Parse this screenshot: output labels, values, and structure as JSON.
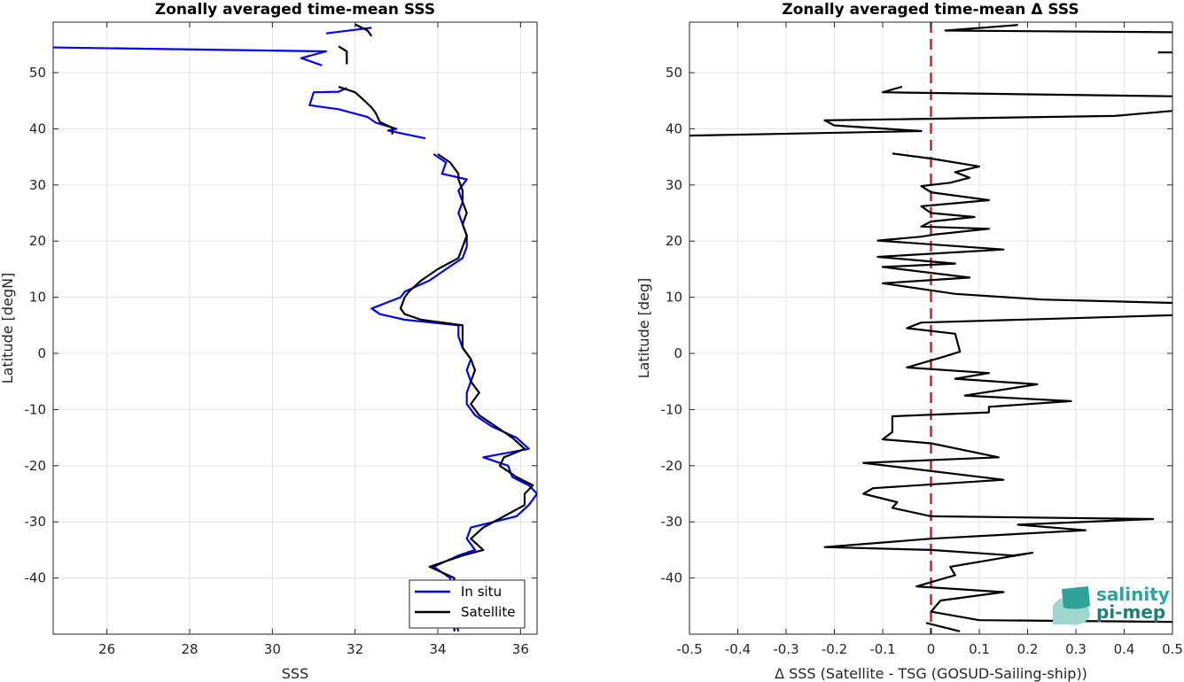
{
  "chart_data": [
    {
      "type": "line",
      "title": "Zonally averaged time-mean SSS",
      "xlabel": "SSS",
      "ylabel": "Latitude [degN]",
      "xlim": [
        24.7,
        36.4
      ],
      "ylim": [
        -50,
        59
      ],
      "xticks": [
        26,
        28,
        30,
        32,
        34,
        36
      ],
      "yticks": [
        -40,
        -30,
        -20,
        -10,
        0,
        10,
        20,
        30,
        40,
        50
      ],
      "grid": true,
      "legend": "bottom-right",
      "series": [
        {
          "name": "In situ",
          "color": "#0000ff",
          "segments": [
            [
              [
                32.4,
                58
              ],
              [
                31.3,
                57
              ]
            ],
            [
              [
                24.6,
                54.5
              ],
              [
                31.3,
                53.8
              ],
              [
                30.7,
                52.6
              ],
              [
                31.2,
                51.3
              ]
            ],
            [
              [
                31.8,
                47.3
              ],
              [
                31.6,
                46.6
              ],
              [
                31.0,
                46.5
              ],
              [
                30.9,
                44.2
              ],
              [
                31.6,
                43.5
              ],
              [
                32.3,
                42.1
              ],
              [
                32.5,
                41.1
              ],
              [
                33.0,
                40.0
              ],
              [
                32.8,
                39.7
              ],
              [
                33.7,
                38.3
              ]
            ]
          ]
        },
        {
          "name": "Satellite",
          "color": "#000000",
          "segments": [
            [
              [
                32.0,
                58.6
              ],
              [
                32.3,
                57.5
              ],
              [
                32.4,
                56.5
              ]
            ],
            [
              [
                31.6,
                54.7
              ],
              [
                31.8,
                53.8
              ],
              [
                31.8,
                51.5
              ]
            ],
            [
              [
                31.6,
                47.5
              ],
              [
                32.0,
                46.5
              ],
              [
                32.2,
                45.2
              ],
              [
                32.4,
                43.8
              ],
              [
                32.5,
                42.8
              ],
              [
                32.6,
                41.2
              ],
              [
                32.9,
                40.2
              ],
              [
                32.9,
                39.0
              ]
            ]
          ]
        }
      ],
      "series_south": {
        "lat": [
          35.5,
          34,
          32,
          31,
          29,
          27,
          25,
          23,
          21,
          19,
          17,
          15,
          13,
          11,
          10,
          8,
          7,
          6,
          5,
          3,
          1,
          -1,
          -3,
          -5,
          -7,
          -9,
          -11,
          -13,
          -15,
          -17,
          -18.5,
          -20,
          -22,
          -23.5,
          -25,
          -27,
          -29,
          -31,
          -33,
          -35,
          -36,
          -38,
          -40,
          -43,
          -45,
          -47,
          -49.5
        ],
        "in_situ": [
          33.9,
          34.2,
          34.1,
          34.7,
          34.5,
          34.6,
          34.5,
          34.6,
          34.7,
          34.7,
          34.6,
          34.2,
          33.8,
          33.2,
          33.1,
          32.4,
          32.6,
          33.2,
          34.5,
          34.5,
          34.6,
          34.8,
          34.7,
          34.8,
          34.7,
          34.7,
          34.9,
          35.3,
          35.9,
          36.2,
          35.1,
          35.7,
          35.8,
          36.2,
          36.4,
          36.2,
          35.9,
          34.8,
          34.7,
          34.9,
          34.5,
          33.9,
          34.3,
          34.3,
          34.4,
          34.4,
          34.5
        ],
        "satellite": [
          34.0,
          34.3,
          34.5,
          34.5,
          34.6,
          34.6,
          34.7,
          34.6,
          34.7,
          34.6,
          34.5,
          34.0,
          33.6,
          33.3,
          33.2,
          33.1,
          33.2,
          33.6,
          34.6,
          34.6,
          34.6,
          34.8,
          34.9,
          34.8,
          35.0,
          34.8,
          35.0,
          35.4,
          35.8,
          36.1,
          35.6,
          35.5,
          35.9,
          36.3,
          36.1,
          36.1,
          35.6,
          35.1,
          34.8,
          35.1,
          34.6,
          33.8,
          34.4,
          34.3,
          34.3,
          34.4,
          34.4
        ]
      }
    },
    {
      "type": "line",
      "title": "Zonally averaged time-mean Δ SSS",
      "xlabel": "Δ SSS (Satellite - TSG (GOSUD-Sailing-ship))",
      "ylabel": "Latitude [deg]",
      "xlim": [
        -0.5,
        0.5
      ],
      "ylim": [
        -50,
        59
      ],
      "xticks": [
        -0.5,
        -0.4,
        -0.3,
        -0.2,
        -0.1,
        0,
        0.1,
        0.2,
        0.3,
        0.4,
        0.5
      ],
      "yticks": [
        -40,
        -30,
        -20,
        -10,
        0,
        10,
        20,
        30,
        40,
        50
      ],
      "grid": true,
      "reference_line": {
        "x": 0,
        "color": "#e31a1c",
        "style": "dashed"
      },
      "series": [
        {
          "name": "",
          "color": "#000000",
          "segments": [
            [
              [
                0.18,
                58.5
              ],
              [
                0.03,
                57.5
              ],
              [
                0.5,
                57.2
              ]
            ],
            [
              [
                0.47,
                53.6
              ],
              [
                0.5,
                53.6
              ]
            ],
            [
              [
                -0.06,
                47.5
              ],
              [
                -0.1,
                46.5
              ],
              [
                0.5,
                45.8
              ]
            ],
            [
              [
                0.5,
                43.2
              ],
              [
                0.38,
                42.3
              ],
              [
                -0.22,
                41.5
              ],
              [
                -0.2,
                40.6
              ],
              [
                -0.02,
                39.6
              ],
              [
                -0.5,
                38.8
              ]
            ],
            [
              [
                -0.08,
                35.6
              ],
              [
                0.0,
                34.7
              ],
              [
                0.1,
                33.3
              ],
              [
                0.05,
                32.3
              ],
              [
                0.08,
                31.3
              ],
              [
                0.04,
                30.4
              ],
              [
                -0.02,
                29.8
              ],
              [
                0.0,
                28.7
              ],
              [
                0.12,
                27.3
              ],
              [
                -0.02,
                26.2
              ],
              [
                0.0,
                25.0
              ],
              [
                0.09,
                24.3
              ],
              [
                0.0,
                23.5
              ],
              [
                -0.02,
                22.6
              ],
              [
                0.12,
                22.2
              ],
              [
                0.01,
                21.2
              ],
              [
                -0.02,
                20.8
              ],
              [
                -0.11,
                20.1
              ],
              [
                0.15,
                18.5
              ],
              [
                -0.11,
                17.2
              ],
              [
                0.05,
                16.0
              ],
              [
                -0.1,
                15.4
              ],
              [
                0.08,
                13.5
              ],
              [
                -0.1,
                12.5
              ],
              [
                0.05,
                10.6
              ],
              [
                0.23,
                9.6
              ],
              [
                0.5,
                9.0
              ]
            ],
            [
              [
                0.5,
                6.8
              ],
              [
                -0.02,
                5.5
              ],
              [
                -0.05,
                4.5
              ],
              [
                0.05,
                3.5
              ],
              [
                0.06,
                0.3
              ],
              [
                0.03,
                -0.5
              ],
              [
                -0.05,
                -2.5
              ],
              [
                0.12,
                -3.5
              ],
              [
                0.05,
                -4.5
              ],
              [
                0.22,
                -5.5
              ],
              [
                0.07,
                -7.5
              ],
              [
                0.29,
                -8.5
              ],
              [
                0.12,
                -9.5
              ],
              [
                0.12,
                -10.5
              ],
              [
                -0.08,
                -11.2
              ],
              [
                -0.08,
                -14.0
              ],
              [
                -0.1,
                -15.3
              ],
              [
                0.0,
                -16.0
              ],
              [
                0.14,
                -18.5
              ],
              [
                -0.14,
                -19.5
              ],
              [
                0.15,
                -22.5
              ],
              [
                -0.12,
                -24.0
              ],
              [
                -0.14,
                -25.0
              ],
              [
                -0.07,
                -26.5
              ],
              [
                -0.08,
                -27.5
              ],
              [
                0.0,
                -29.0
              ],
              [
                0.46,
                -29.5
              ],
              [
                0.18,
                -30.5
              ],
              [
                0.32,
                -31.5
              ],
              [
                0.0,
                -33.0
              ],
              [
                -0.22,
                -34.5
              ],
              [
                0.0,
                -35.0
              ],
              [
                0.17,
                -36.0
              ],
              [
                0.21,
                -35.5
              ],
              [
                0.04,
                -38.0
              ],
              [
                0.05,
                -39.5
              ],
              [
                0.03,
                -40.0
              ],
              [
                -0.03,
                -41.5
              ],
              [
                0.15,
                -42.5
              ],
              [
                0.02,
                -44.0
              ],
              [
                0.0,
                -46.0
              ],
              [
                0.1,
                -47.5
              ],
              [
                0.5,
                -47.8
              ]
            ],
            [
              [
                -0.01,
                -48.0
              ],
              [
                0.06,
                -49.5
              ]
            ]
          ]
        }
      ]
    }
  ],
  "legend": {
    "items": [
      {
        "label": "In situ",
        "color": "#0000ff"
      },
      {
        "label": "Satellite",
        "color": "#000000"
      }
    ]
  },
  "logo": {
    "line1": "salinity",
    "line2": "pi-mep"
  }
}
